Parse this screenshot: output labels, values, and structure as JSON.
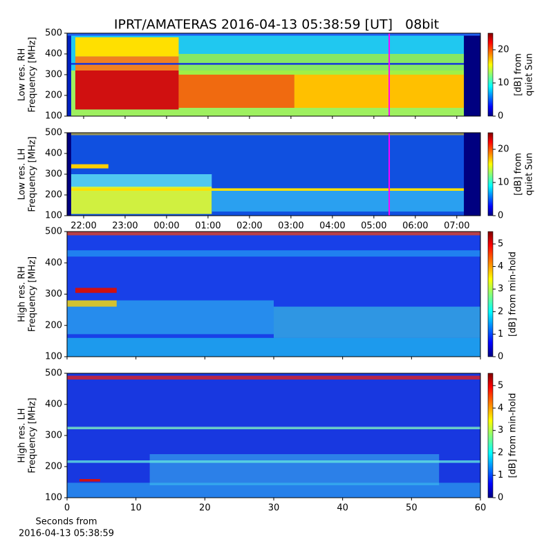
{
  "title": "IPRT/AMATERAS 2016-04-13 05:38:59 [UT]   08bit",
  "chart_data": [
    {
      "type": "heatmap",
      "ylabel": [
        "Low res. RH",
        "Frequency [MHz]"
      ],
      "ylim": [
        100,
        500
      ],
      "yticks": [
        100,
        200,
        300,
        400,
        500
      ],
      "xlim": [
        21.6,
        31.57
      ],
      "colormap": "jet",
      "clim": [
        0,
        25
      ],
      "cticks": [
        0,
        10,
        20
      ],
      "colorbar_label": [
        "[dB] from",
        "quiet Sun"
      ],
      "marker_x": 29.37,
      "marker_color": "#ff00ff"
    },
    {
      "type": "heatmap",
      "ylabel": [
        "Low res. LH",
        "Frequency [MHz]"
      ],
      "ylim": [
        100,
        500
      ],
      "yticks": [
        100,
        200,
        300,
        400,
        500
      ],
      "xlim": [
        21.6,
        31.57
      ],
      "xticks": [
        {
          "value": 22,
          "label": "22:00"
        },
        {
          "value": 23,
          "label": "23:00"
        },
        {
          "value": 24,
          "label": "00:00"
        },
        {
          "value": 25,
          "label": "01:00"
        },
        {
          "value": 26,
          "label": "02:00"
        },
        {
          "value": 27,
          "label": "03:00"
        },
        {
          "value": 28,
          "label": "04:00"
        },
        {
          "value": 29,
          "label": "05:00"
        },
        {
          "value": 30,
          "label": "06:00"
        },
        {
          "value": 31,
          "label": "07:00"
        }
      ],
      "colormap": "jet",
      "clim": [
        0,
        25
      ],
      "cticks": [
        0,
        10,
        20
      ],
      "colorbar_label": [
        "[dB] from",
        "quiet Sun"
      ],
      "marker_x": 29.37,
      "marker_color": "#ff00ff"
    },
    {
      "type": "heatmap",
      "ylabel": [
        "High res. RH",
        "Frequency [MHz]"
      ],
      "ylim": [
        100,
        500
      ],
      "yticks": [
        100,
        200,
        300,
        400,
        500
      ],
      "xlim": [
        0,
        60
      ],
      "colormap": "jet",
      "clim": [
        0,
        5.55
      ],
      "cticks": [
        0,
        1,
        2,
        3,
        4,
        5
      ],
      "colorbar_label": [
        "[dB] from min-hold"
      ]
    },
    {
      "type": "heatmap",
      "ylabel": [
        "High res. LH",
        "Frequency [MHz]"
      ],
      "ylim": [
        100,
        500
      ],
      "yticks": [
        100,
        200,
        300,
        400,
        500
      ],
      "xlim": [
        0,
        60
      ],
      "xticks": [
        0,
        10,
        20,
        30,
        40,
        50,
        60
      ],
      "xlabel": [
        "Seconds from",
        "2016-04-13 05:38:59"
      ],
      "colormap": "jet",
      "clim": [
        0,
        5.55
      ],
      "cticks": [
        0,
        1,
        2,
        3,
        4,
        5
      ],
      "colorbar_label": [
        "[dB] from min-hold"
      ]
    }
  ]
}
